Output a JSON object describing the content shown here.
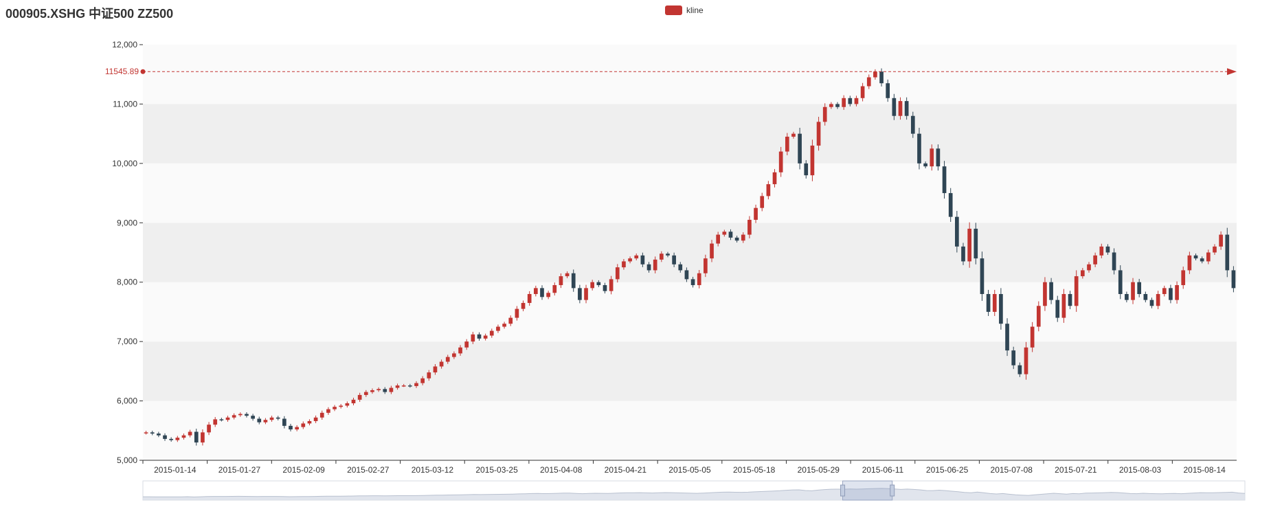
{
  "header": {
    "title": "000905.XSHG   中证500 ZZ500"
  },
  "chart_data": {
    "type": "candlestick",
    "title": "000905.XSHG   中证500 ZZ500",
    "legend": {
      "label": "kline",
      "position": "top-center"
    },
    "ylim": [
      5000,
      12000
    ],
    "yticks": [
      "5,000",
      "6,000",
      "7,000",
      "8,000",
      "9,000",
      "10,000",
      "11,000",
      "12,000"
    ],
    "xtick_labels": [
      "2015-01-14",
      "2015-01-27",
      "2015-02-09",
      "2015-02-27",
      "2015-03-12",
      "2015-03-25",
      "2015-04-08",
      "2015-04-21",
      "2015-05-05",
      "2015-05-18",
      "2015-05-29",
      "2015-06-11",
      "2015-06-25",
      "2015-07-08",
      "2015-07-21",
      "2015-08-03",
      "2015-08-14"
    ],
    "max_marker": {
      "value": 11545.89,
      "label": "11545.89"
    },
    "colors": {
      "up": "#c23531",
      "down": "#2f4554",
      "markline": "#c23531",
      "band": "#efefef",
      "band_alt": "#fafafa"
    },
    "close_path": [
      5470,
      5450,
      5420,
      5360,
      5340,
      5380,
      5420,
      5480,
      5300,
      5470,
      5600,
      5690,
      5680,
      5720,
      5760,
      5780,
      5750,
      5700,
      5640,
      5680,
      5720,
      5700,
      5580,
      5520,
      5560,
      5620,
      5660,
      5720,
      5800,
      5860,
      5900,
      5920,
      5960,
      6020,
      6100,
      6150,
      6180,
      6200,
      6150,
      6220,
      6260,
      6260,
      6250,
      6300,
      6380,
      6480,
      6580,
      6660,
      6740,
      6800,
      6900,
      7000,
      7120,
      7050,
      7100,
      7180,
      7250,
      7300,
      7400,
      7550,
      7650,
      7800,
      7900,
      7750,
      7820,
      7950,
      8100,
      8150,
      7900,
      7700,
      7900,
      8000,
      7950,
      7850,
      8050,
      8250,
      8350,
      8400,
      8450,
      8300,
      8200,
      8380,
      8480,
      8450,
      8300,
      8200,
      8050,
      7950,
      8150,
      8400,
      8650,
      8800,
      8850,
      8750,
      8700,
      8800,
      9050,
      9250,
      9450,
      9650,
      9850,
      10200,
      10450,
      10500,
      10000,
      9800,
      10300,
      10700,
      10950,
      11000,
      10950,
      11100,
      11000,
      11100,
      11300,
      11450,
      11546,
      11350,
      11100,
      10800,
      11050,
      10800,
      10500,
      10000,
      9950,
      10250,
      9950,
      9500,
      9100,
      8600,
      8350,
      8900,
      8400,
      7800,
      7500,
      7800,
      7300,
      6850,
      6600,
      6450,
      6900,
      7250,
      7600,
      8000,
      7700,
      7400,
      7800,
      7600,
      8100,
      8200,
      8300,
      8450,
      8600,
      8500,
      8200,
      7800,
      7700,
      8000,
      7800,
      7700,
      7600,
      7800,
      7900,
      7700,
      7950,
      8200,
      8450,
      8400,
      8350,
      8500,
      8600,
      8800,
      8200,
      7900
    ],
    "minimap_note": "dataZoom slider (full data preview)"
  }
}
